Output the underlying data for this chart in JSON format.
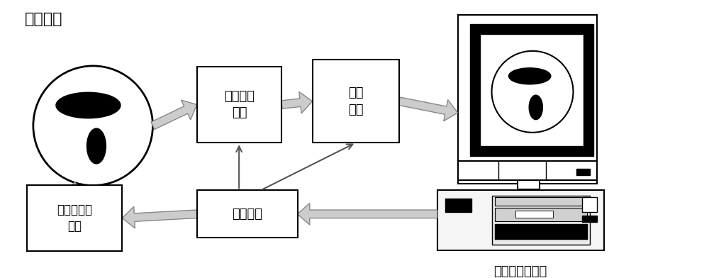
{
  "title_top_left": "过程对象",
  "label_computer": "图像重建计算机",
  "box1_label": "数据采集\n单元",
  "box2_label": "解调\n单元",
  "box3_label": "敏感场激励\n单元",
  "box4_label": "主控系统",
  "bg_color": "#ffffff",
  "box_edge_color": "#000000",
  "arrow_gray": "#aaaaaa",
  "arrow_dark": "#555555"
}
